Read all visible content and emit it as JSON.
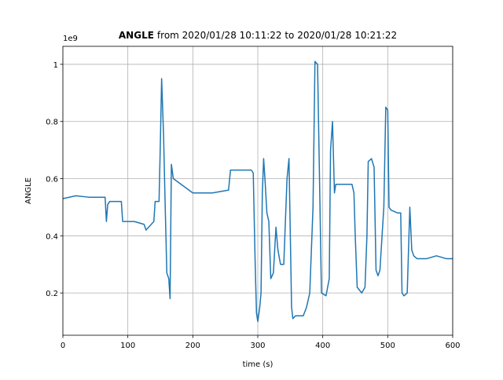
{
  "chart_data": {
    "type": "line",
    "title_bold": "ANGLE",
    "title_rest": "from 2020/01/28 10:11:22 to 2020/01/28 10:21:22",
    "x_label": "time (s)",
    "y_label": "ANGLE",
    "y_offset_label": "1e9",
    "xlim": [
      0,
      600
    ],
    "ylim": [
      0.052,
      1.063
    ],
    "xticks": [
      0,
      100,
      200,
      300,
      400,
      500,
      600
    ],
    "yticks": [
      0.2,
      0.4,
      0.6,
      0.8,
      1.0
    ],
    "grid": true,
    "x": [
      0,
      20,
      40,
      65,
      67,
      69,
      72,
      90,
      92,
      110,
      125,
      128,
      140,
      142,
      148,
      150,
      152,
      155,
      157,
      160,
      163,
      165,
      167,
      170,
      200,
      230,
      255,
      258,
      275,
      290,
      293,
      296,
      298,
      300,
      303,
      305,
      307,
      309,
      311,
      314,
      317,
      320,
      324,
      328,
      331,
      335,
      340,
      345,
      348,
      352,
      354,
      358,
      370,
      375,
      380,
      385,
      388,
      392,
      395,
      398,
      405,
      410,
      412,
      415,
      418,
      420,
      445,
      448,
      450,
      453,
      460,
      465,
      468,
      470,
      475,
      479,
      482,
      485,
      488,
      494,
      497,
      500,
      502,
      505,
      515,
      520,
      522,
      525,
      530,
      534,
      537,
      540,
      545,
      560,
      575,
      590,
      600
    ],
    "series": [
      {
        "name": "ANGLE",
        "color": "#1f77b4",
        "values": [
          0.53,
          0.54,
          0.535,
          0.535,
          0.45,
          0.51,
          0.52,
          0.52,
          0.45,
          0.45,
          0.44,
          0.42,
          0.45,
          0.52,
          0.52,
          0.72,
          0.95,
          0.75,
          0.55,
          0.27,
          0.25,
          0.18,
          0.65,
          0.6,
          0.55,
          0.55,
          0.56,
          0.63,
          0.63,
          0.63,
          0.62,
          0.3,
          0.13,
          0.1,
          0.15,
          0.2,
          0.55,
          0.67,
          0.6,
          0.48,
          0.45,
          0.25,
          0.27,
          0.43,
          0.35,
          0.3,
          0.3,
          0.6,
          0.67,
          0.15,
          0.11,
          0.12,
          0.12,
          0.15,
          0.2,
          0.5,
          1.01,
          1.0,
          0.6,
          0.2,
          0.19,
          0.25,
          0.7,
          0.8,
          0.55,
          0.58,
          0.58,
          0.55,
          0.4,
          0.22,
          0.2,
          0.22,
          0.4,
          0.66,
          0.67,
          0.64,
          0.28,
          0.26,
          0.28,
          0.5,
          0.85,
          0.84,
          0.5,
          0.49,
          0.48,
          0.48,
          0.2,
          0.19,
          0.2,
          0.5,
          0.35,
          0.33,
          0.32,
          0.32,
          0.33,
          0.32,
          0.32
        ]
      }
    ]
  }
}
